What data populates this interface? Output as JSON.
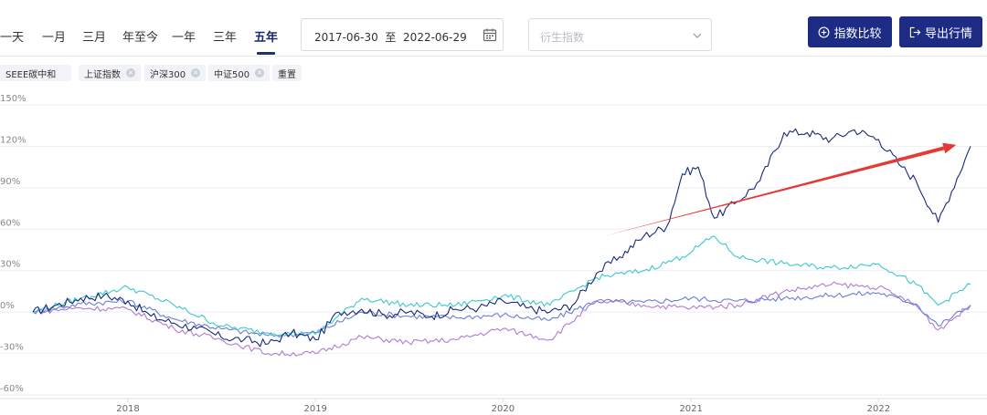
{
  "toolbar": {
    "tabs": [
      "一天",
      "一月",
      "三月",
      "年至今",
      "一年",
      "三年",
      "五年"
    ],
    "active_tab": "五年",
    "date_start": "2017-06-30",
    "date_sep": "至",
    "date_end": "2022-06-29",
    "derive_placeholder": "衍生指数",
    "compare_label": "指数比较",
    "export_label": "导出行情"
  },
  "chips": [
    {
      "label": "SEEE碳中和",
      "removable": false
    },
    {
      "label": "上证指数",
      "removable": true
    },
    {
      "label": "沪深300",
      "removable": true
    },
    {
      "label": "中证500",
      "removable": true
    },
    {
      "label": "重置",
      "removable": false
    }
  ],
  "colors": {
    "primary_button": "#1e2b85",
    "seee": "#1a2a7a",
    "shanghai": "#6a7fd4",
    "hs300": "#3cc9c9",
    "zz500": "#b07ad6",
    "arrow": "#e53935"
  },
  "chart_data": {
    "type": "line",
    "y_ticks": [
      "150%",
      "120%",
      "90%",
      "60%",
      "30%",
      "0%",
      "-30%",
      "-60%"
    ],
    "ylim": [
      -60,
      150
    ],
    "x_ticks": [
      "2018",
      "2019",
      "2020",
      "2021",
      "2022"
    ],
    "x_start": "2017-06-30",
    "x_end": "2022-06-29",
    "grid": true,
    "series": [
      {
        "name": "SEEE碳中和",
        "color": "#1a2a7a",
        "x": [
          "2017-06-30",
          "2017-08-15",
          "2017-10-01",
          "2017-11-15",
          "2018-01-01",
          "2018-02-15",
          "2018-04-01",
          "2018-05-15",
          "2018-07-01",
          "2018-08-15",
          "2018-10-01",
          "2018-11-15",
          "2019-01-01",
          "2019-02-15",
          "2019-04-01",
          "2019-05-15",
          "2019-07-01",
          "2019-08-15",
          "2019-10-01",
          "2019-11-15",
          "2020-01-01",
          "2020-02-15",
          "2020-04-01",
          "2020-05-15",
          "2020-07-01",
          "2020-08-15",
          "2020-10-01",
          "2020-11-15",
          "2020-12-15",
          "2021-01-15",
          "2021-02-15",
          "2021-04-01",
          "2021-05-15",
          "2021-07-01",
          "2021-08-15",
          "2021-10-01",
          "2021-11-15",
          "2022-01-01",
          "2022-02-15",
          "2022-03-15",
          "2022-04-27",
          "2022-06-29"
        ],
        "values": [
          0,
          5,
          10,
          12,
          8,
          -3,
          -8,
          -12,
          -18,
          -20,
          -23,
          -15,
          -20,
          0,
          2,
          -2,
          0,
          -3,
          2,
          3,
          8,
          3,
          0,
          5,
          28,
          40,
          55,
          62,
          100,
          105,
          68,
          80,
          95,
          130,
          130,
          125,
          132,
          125,
          105,
          95,
          65,
          120
        ]
      },
      {
        "name": "上证指数",
        "color": "#6a7fd4",
        "x": [
          "2017-06-30",
          "2017-10-01",
          "2018-01-01",
          "2018-04-01",
          "2018-07-01",
          "2018-10-01",
          "2019-01-01",
          "2019-04-01",
          "2019-07-01",
          "2019-10-01",
          "2020-01-01",
          "2020-04-01",
          "2020-07-01",
          "2020-10-01",
          "2021-01-01",
          "2021-04-01",
          "2021-07-01",
          "2021-10-01",
          "2022-01-01",
          "2022-03-15",
          "2022-04-27",
          "2022-06-29"
        ],
        "values": [
          0,
          6,
          8,
          -5,
          -12,
          -17,
          -15,
          0,
          -3,
          -4,
          -2,
          -6,
          8,
          7,
          10,
          8,
          10,
          12,
          14,
          6,
          -10,
          5
        ]
      },
      {
        "name": "沪深300",
        "color": "#3cc9c9",
        "x": [
          "2017-06-30",
          "2017-10-01",
          "2018-01-01",
          "2018-04-01",
          "2018-07-01",
          "2018-10-01",
          "2019-01-01",
          "2019-04-01",
          "2019-07-01",
          "2019-10-01",
          "2020-01-01",
          "2020-04-01",
          "2020-07-01",
          "2020-10-01",
          "2020-12-15",
          "2021-02-15",
          "2021-04-01",
          "2021-07-01",
          "2021-10-01",
          "2022-01-01",
          "2022-03-15",
          "2022-04-27",
          "2022-06-29"
        ],
        "values": [
          0,
          10,
          18,
          5,
          -10,
          -15,
          -16,
          10,
          5,
          5,
          12,
          5,
          25,
          30,
          40,
          55,
          40,
          35,
          32,
          35,
          20,
          5,
          20
        ]
      },
      {
        "name": "中证500",
        "color": "#b07ad6",
        "x": [
          "2017-06-30",
          "2017-10-01",
          "2018-01-01",
          "2018-04-01",
          "2018-07-01",
          "2018-10-01",
          "2019-01-01",
          "2019-04-01",
          "2019-07-01",
          "2019-10-01",
          "2020-01-01",
          "2020-04-01",
          "2020-07-01",
          "2020-10-01",
          "2021-01-01",
          "2021-04-01",
          "2021-07-01",
          "2021-10-01",
          "2022-01-01",
          "2022-03-15",
          "2022-04-27",
          "2022-06-29"
        ],
        "values": [
          0,
          3,
          2,
          -12,
          -20,
          -30,
          -30,
          -18,
          -22,
          -20,
          -12,
          -20,
          8,
          5,
          3,
          5,
          15,
          20,
          18,
          5,
          -13,
          5
        ]
      }
    ],
    "annotation": {
      "type": "arrow",
      "color": "#e53935",
      "from": [
        "2020-07-15",
        55
      ],
      "to": [
        "2022-06-01",
        121
      ]
    }
  }
}
